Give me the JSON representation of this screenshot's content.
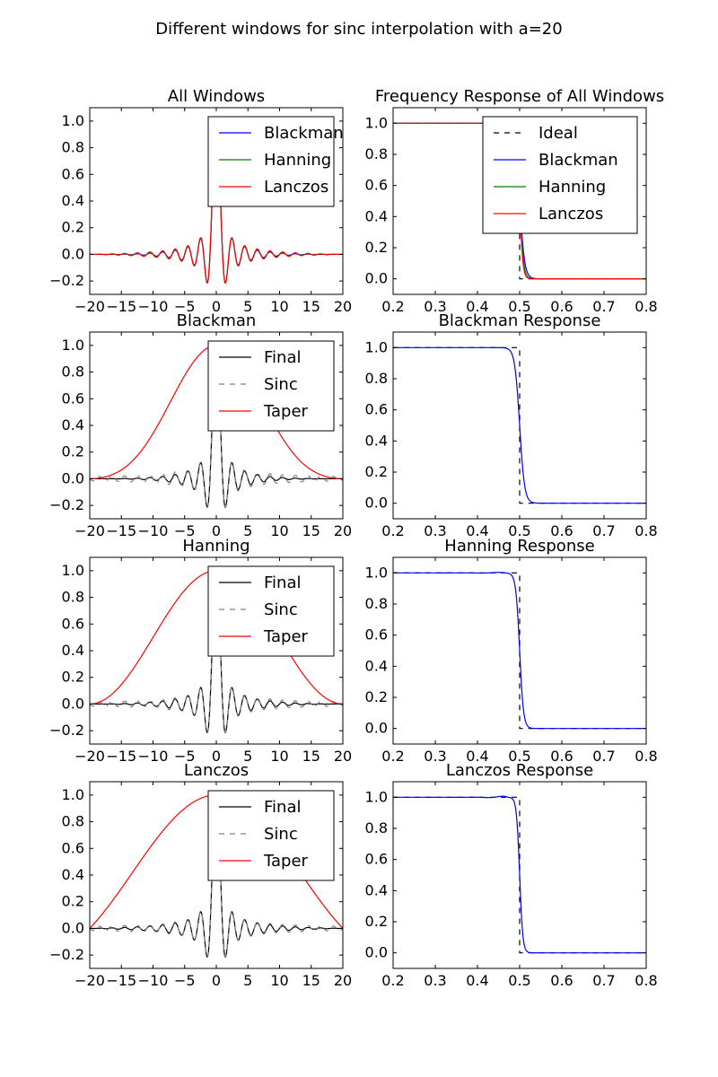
{
  "figure": {
    "title": "Different windows for sinc interpolation with a=20"
  },
  "chart_data": [
    {
      "type": "line",
      "title": "All Windows",
      "xlim": [
        -20,
        20
      ],
      "ylim": [
        -0.3,
        1.1
      ],
      "xticks": [
        -20,
        -15,
        -10,
        -5,
        0,
        5,
        10,
        15,
        20
      ],
      "xtick_labels": [
        "−20",
        "−15",
        "−10",
        "−5",
        "0",
        "5",
        "10",
        "15",
        "20"
      ],
      "yticks": [
        -0.2,
        0.0,
        0.2,
        0.4,
        0.6,
        0.8,
        1.0
      ],
      "ytick_labels": [
        "−0.2",
        "0.0",
        "0.2",
        "0.4",
        "0.6",
        "0.8",
        "1.0"
      ],
      "legend": "upper-right",
      "a": 20,
      "series": [
        {
          "name": "Blackman",
          "color": "#0000ff",
          "style": "solid",
          "kind": "windowed_sinc",
          "window": "blackman"
        },
        {
          "name": "Hanning",
          "color": "#008000",
          "style": "solid",
          "kind": "windowed_sinc",
          "window": "hanning"
        },
        {
          "name": "Lanczos",
          "color": "#ff0000",
          "style": "solid",
          "kind": "windowed_sinc",
          "window": "lanczos"
        }
      ]
    },
    {
      "type": "line",
      "title": "Frequency Response of All Windows",
      "xlim": [
        0.2,
        0.8
      ],
      "ylim": [
        -0.1,
        1.1
      ],
      "xticks": [
        0.2,
        0.3,
        0.4,
        0.5,
        0.6,
        0.7,
        0.8
      ],
      "xtick_labels": [
        "0.2",
        "0.3",
        "0.4",
        "0.5",
        "0.6",
        "0.7",
        "0.8"
      ],
      "yticks": [
        0.0,
        0.2,
        0.4,
        0.6,
        0.8,
        1.0
      ],
      "ytick_labels": [
        "0.0",
        "0.2",
        "0.4",
        "0.6",
        "0.8",
        "1.0"
      ],
      "legend": "upper-right",
      "series": [
        {
          "name": "Ideal",
          "color": "#000000",
          "style": "dashed",
          "kind": "ideal"
        },
        {
          "name": "Blackman",
          "color": "#0000ff",
          "style": "solid",
          "kind": "response",
          "center": 0.5,
          "width": 0.028
        },
        {
          "name": "Hanning",
          "color": "#008000",
          "style": "solid",
          "kind": "response",
          "center": 0.5,
          "width": 0.022
        },
        {
          "name": "Lanczos",
          "color": "#ff0000",
          "style": "solid",
          "kind": "response",
          "center": 0.5,
          "width": 0.018
        }
      ]
    },
    {
      "type": "line",
      "title": "Blackman",
      "xlim": [
        -20,
        20
      ],
      "ylim": [
        -0.3,
        1.1
      ],
      "xticks": [
        -20,
        -15,
        -10,
        -5,
        0,
        5,
        10,
        15,
        20
      ],
      "xtick_labels": [
        "−20",
        "−15",
        "−10",
        "−5",
        "0",
        "5",
        "10",
        "15",
        "20"
      ],
      "yticks": [
        -0.2,
        0.0,
        0.2,
        0.4,
        0.6,
        0.8,
        1.0
      ],
      "ytick_labels": [
        "−0.2",
        "0.0",
        "0.2",
        "0.4",
        "0.6",
        "0.8",
        "1.0"
      ],
      "legend": "upper-right",
      "a": 20,
      "series": [
        {
          "name": "Final",
          "color": "#000000",
          "style": "solid",
          "kind": "windowed_sinc",
          "window": "blackman"
        },
        {
          "name": "Sinc",
          "color": "#808080",
          "style": "dashed",
          "kind": "sinc"
        },
        {
          "name": "Taper",
          "color": "#ff0000",
          "style": "solid",
          "kind": "window",
          "window": "blackman"
        }
      ]
    },
    {
      "type": "line",
      "title": "Blackman Response",
      "xlim": [
        0.2,
        0.8
      ],
      "ylim": [
        -0.1,
        1.1
      ],
      "xticks": [
        0.2,
        0.3,
        0.4,
        0.5,
        0.6,
        0.7,
        0.8
      ],
      "xtick_labels": [
        "0.2",
        "0.3",
        "0.4",
        "0.5",
        "0.6",
        "0.7",
        "0.8"
      ],
      "yticks": [
        0.0,
        0.2,
        0.4,
        0.6,
        0.8,
        1.0
      ],
      "ytick_labels": [
        "0.0",
        "0.2",
        "0.4",
        "0.6",
        "0.8",
        "1.0"
      ],
      "series": [
        {
          "name": "",
          "color": "#000000",
          "style": "dashed",
          "kind": "ideal"
        },
        {
          "name": "",
          "color": "#0000ff",
          "style": "solid",
          "kind": "response",
          "center": 0.5,
          "width": 0.028,
          "ripple": 0
        }
      ]
    },
    {
      "type": "line",
      "title": "Hanning",
      "xlim": [
        -20,
        20
      ],
      "ylim": [
        -0.3,
        1.1
      ],
      "xticks": [
        -20,
        -15,
        -10,
        -5,
        0,
        5,
        10,
        15,
        20
      ],
      "xtick_labels": [
        "−20",
        "−15",
        "−10",
        "−5",
        "0",
        "5",
        "10",
        "15",
        "20"
      ],
      "yticks": [
        -0.2,
        0.0,
        0.2,
        0.4,
        0.6,
        0.8,
        1.0
      ],
      "ytick_labels": [
        "−0.2",
        "0.0",
        "0.2",
        "0.4",
        "0.6",
        "0.8",
        "1.0"
      ],
      "legend": "upper-right",
      "a": 20,
      "series": [
        {
          "name": "Final",
          "color": "#000000",
          "style": "solid",
          "kind": "windowed_sinc",
          "window": "hanning"
        },
        {
          "name": "Sinc",
          "color": "#808080",
          "style": "dashed",
          "kind": "sinc"
        },
        {
          "name": "Taper",
          "color": "#ff0000",
          "style": "solid",
          "kind": "window",
          "window": "hanning"
        }
      ]
    },
    {
      "type": "line",
      "title": "Hanning Response",
      "xlim": [
        0.2,
        0.8
      ],
      "ylim": [
        -0.1,
        1.1
      ],
      "xticks": [
        0.2,
        0.3,
        0.4,
        0.5,
        0.6,
        0.7,
        0.8
      ],
      "xtick_labels": [
        "0.2",
        "0.3",
        "0.4",
        "0.5",
        "0.6",
        "0.7",
        "0.8"
      ],
      "yticks": [
        0.0,
        0.2,
        0.4,
        0.6,
        0.8,
        1.0
      ],
      "ytick_labels": [
        "0.0",
        "0.2",
        "0.4",
        "0.6",
        "0.8",
        "1.0"
      ],
      "series": [
        {
          "name": "",
          "color": "#000000",
          "style": "dashed",
          "kind": "ideal"
        },
        {
          "name": "",
          "color": "#0000ff",
          "style": "solid",
          "kind": "response",
          "center": 0.5,
          "width": 0.022,
          "ripple": 0.006
        }
      ]
    },
    {
      "type": "line",
      "title": "Lanczos",
      "xlim": [
        -20,
        20
      ],
      "ylim": [
        -0.3,
        1.1
      ],
      "xticks": [
        -20,
        -15,
        -10,
        -5,
        0,
        5,
        10,
        15,
        20
      ],
      "xtick_labels": [
        "−20",
        "−15",
        "−10",
        "−5",
        "0",
        "5",
        "10",
        "15",
        "20"
      ],
      "yticks": [
        -0.2,
        0.0,
        0.2,
        0.4,
        0.6,
        0.8,
        1.0
      ],
      "ytick_labels": [
        "−0.2",
        "0.0",
        "0.2",
        "0.4",
        "0.6",
        "0.8",
        "1.0"
      ],
      "legend": "upper-right",
      "a": 20,
      "series": [
        {
          "name": "Final",
          "color": "#000000",
          "style": "solid",
          "kind": "windowed_sinc",
          "window": "lanczos"
        },
        {
          "name": "Sinc",
          "color": "#808080",
          "style": "dashed",
          "kind": "sinc"
        },
        {
          "name": "Taper",
          "color": "#ff0000",
          "style": "solid",
          "kind": "window",
          "window": "lanczos"
        }
      ]
    },
    {
      "type": "line",
      "title": "Lanczos Response",
      "xlim": [
        0.2,
        0.8
      ],
      "ylim": [
        -0.1,
        1.1
      ],
      "xticks": [
        0.2,
        0.3,
        0.4,
        0.5,
        0.6,
        0.7,
        0.8
      ],
      "xtick_labels": [
        "0.2",
        "0.3",
        "0.4",
        "0.5",
        "0.6",
        "0.7",
        "0.8"
      ],
      "yticks": [
        0.0,
        0.2,
        0.4,
        0.6,
        0.8,
        1.0
      ],
      "ytick_labels": [
        "0.0",
        "0.2",
        "0.4",
        "0.6",
        "0.8",
        "1.0"
      ],
      "series": [
        {
          "name": "",
          "color": "#000000",
          "style": "dashed",
          "kind": "ideal"
        },
        {
          "name": "",
          "color": "#0000ff",
          "style": "solid",
          "kind": "response",
          "center": 0.5,
          "width": 0.018,
          "ripple": 0.012
        }
      ]
    }
  ]
}
